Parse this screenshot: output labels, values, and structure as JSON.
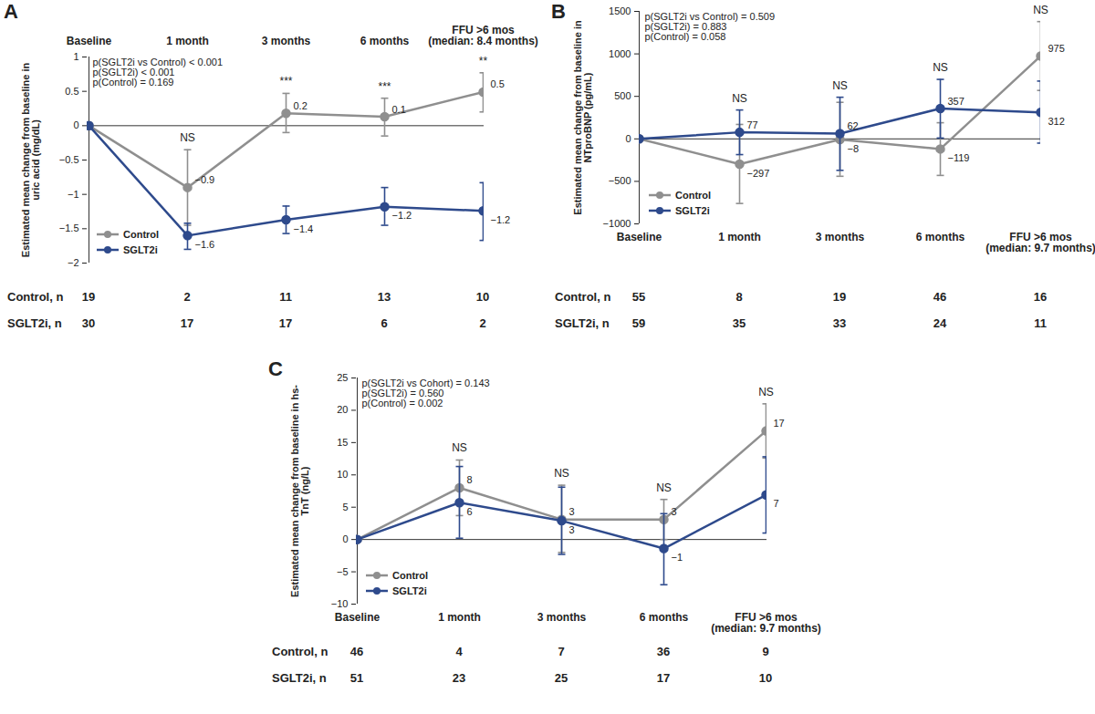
{
  "chart_data": [
    {
      "type": "line",
      "title": "A",
      "categories": [
        "Baseline",
        "1 month",
        "3 months",
        "6 months",
        "FFU >6 mos (median: 8.4 months)"
      ],
      "y_label": "Estimated mean change from baseline in uric acid (mg/dL)",
      "ylim": [
        -2,
        1
      ],
      "yticks": [
        -2,
        -1.5,
        -1,
        -0.5,
        0,
        0.5,
        1
      ],
      "annotations": [
        "p(SGLT2i vs Control) < 0.001",
        "p(SGLT2i) < 0.001",
        "p(Control) = 0.169"
      ],
      "significance": [
        null,
        "NS",
        "***",
        "***",
        "**"
      ],
      "legend": "bottom-left",
      "data_labels": true,
      "marker": "circle",
      "series": [
        {
          "name": "Control",
          "color": "#8f8f8f",
          "values": [
            0,
            -0.9,
            0.18,
            0.13,
            0.49
          ],
          "value_labels": [
            null,
            "−0.9",
            "0.2",
            "0.1",
            "0.5"
          ],
          "ci_lower": [
            null,
            -1.45,
            -0.1,
            -0.15,
            0.2
          ],
          "ci_upper": [
            null,
            -0.35,
            0.47,
            0.4,
            0.77
          ]
        },
        {
          "name": "SGLT2i",
          "color": "#2e4a8c",
          "values": [
            0,
            -1.6,
            -1.37,
            -1.18,
            -1.24
          ],
          "value_labels": [
            null,
            "−1.6",
            "−1.4",
            "−1.2",
            "−1.2"
          ],
          "ci_lower": [
            null,
            -1.8,
            -1.57,
            -1.45,
            -1.67
          ],
          "ci_upper": [
            null,
            -1.42,
            -1.17,
            -0.9,
            -0.83
          ]
        }
      ],
      "n_table": {
        "rows": [
          {
            "label": "Control, n",
            "values": [
              19,
              2,
              11,
              13,
              10
            ]
          },
          {
            "label": "SGLT2i, n",
            "values": [
              30,
              17,
              17,
              6,
              2
            ]
          }
        ]
      }
    },
    {
      "type": "line",
      "title": "B",
      "categories": [
        "Baseline",
        "1 month",
        "3 months",
        "6 months",
        "FFU >6 mos (median: 9.7 months)"
      ],
      "y_label": "Estimated mean change from baseline in NTproBNP (pg/mL)",
      "ylim": [
        -1000,
        1500
      ],
      "yticks": [
        -1000,
        -500,
        0,
        500,
        1000,
        1500
      ],
      "annotations": [
        "p(SGLT2i vs Control) = 0.509",
        "p(SGLT2i) = 0.883",
        "p(Control) = 0.058"
      ],
      "significance": [
        null,
        "NS",
        "NS",
        "NS",
        "NS"
      ],
      "legend": "bottom-left",
      "data_labels": true,
      "marker": "circle",
      "series": [
        {
          "name": "Control",
          "color": "#8f8f8f",
          "values": [
            0,
            -297,
            -8,
            -119,
            975
          ],
          "value_labels": [
            null,
            "−297",
            "−8",
            "−119",
            "975"
          ],
          "ci_lower": [
            null,
            -760,
            -440,
            -430,
            570
          ],
          "ci_upper": [
            null,
            170,
            430,
            190,
            1380
          ]
        },
        {
          "name": "SGLT2i",
          "color": "#2e4a8c",
          "values": [
            0,
            77,
            62,
            357,
            312
          ],
          "value_labels": [
            null,
            "77",
            "62",
            "357",
            "312"
          ],
          "ci_lower": [
            null,
            -185,
            -370,
            10,
            -50
          ],
          "ci_upper": [
            null,
            340,
            490,
            700,
            680
          ]
        }
      ],
      "n_table": {
        "rows": [
          {
            "label": "Control, n",
            "values": [
              55,
              8,
              19,
              46,
              16
            ]
          },
          {
            "label": "SGLT2i, n",
            "values": [
              59,
              35,
              33,
              24,
              11
            ]
          }
        ]
      }
    },
    {
      "type": "line",
      "title": "C",
      "categories": [
        "Baseline",
        "1 month",
        "3 months",
        "6 months",
        "FFU >6 mos (median: 9.7 months)"
      ],
      "y_label": "Estimated mean change from baseline in hs-TnT (ng/L)",
      "ylim": [
        -10,
        25
      ],
      "yticks": [
        -10,
        -5,
        0,
        5,
        10,
        15,
        20,
        25
      ],
      "annotations": [
        "p(SGLT2i vs Cohort) = 0.143",
        "p(SGLT2i) = 0.560",
        "p(Control) = 0.002"
      ],
      "significance": [
        null,
        "NS",
        "NS",
        "NS",
        "NS"
      ],
      "legend": "bottom-left",
      "data_labels": true,
      "marker": "circle",
      "series": [
        {
          "name": "Control",
          "color": "#8f8f8f",
          "values": [
            0,
            8,
            3.1,
            3.1,
            16.8
          ],
          "value_labels": [
            null,
            "8",
            "3",
            "3",
            "17"
          ],
          "ci_lower": [
            null,
            3.7,
            -2,
            0,
            12.6
          ],
          "ci_upper": [
            null,
            12.3,
            8.4,
            6.2,
            21
          ]
        },
        {
          "name": "SGLT2i",
          "color": "#2e4a8c",
          "values": [
            0,
            5.7,
            2.9,
            -1.4,
            6.9
          ],
          "value_labels": [
            null,
            "6",
            "3",
            "−1",
            "7"
          ],
          "ci_lower": [
            null,
            0.2,
            -2.3,
            -7,
            1
          ],
          "ci_upper": [
            null,
            11.3,
            8.1,
            4,
            12.8
          ]
        }
      ],
      "n_table": {
        "rows": [
          {
            "label": "Control, n",
            "values": [
              46,
              4,
              7,
              36,
              9
            ]
          },
          {
            "label": "SGLT2i, n",
            "values": [
              51,
              23,
              25,
              17,
              10
            ]
          }
        ]
      }
    }
  ]
}
